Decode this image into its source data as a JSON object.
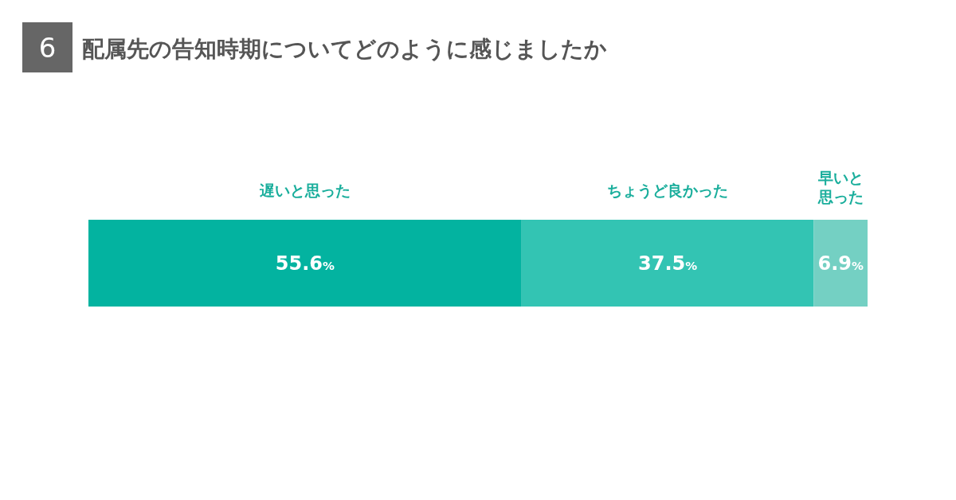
{
  "chart_data": {
    "type": "bar",
    "orientation": "horizontal",
    "stacked": true,
    "title": "配属先の告知時期についてどのように感じましたか",
    "annotations": [
      "6"
    ],
    "categories": [
      null
    ],
    "series": [
      {
        "name": "遅いと思った",
        "color": "#03b3a0",
        "values": [
          55.6
        ],
        "value_labels": [
          "55.6%"
        ]
      },
      {
        "name": "ちょうど良かった",
        "color": "#33c4b3",
        "values": [
          37.5
        ],
        "value_labels": [
          "37.5%"
        ]
      },
      {
        "name": "早いと思った",
        "color": "#74d0c3",
        "values": [
          6.9
        ],
        "value_labels": [
          "6.9%"
        ]
      }
    ],
    "legend": false
  }
}
